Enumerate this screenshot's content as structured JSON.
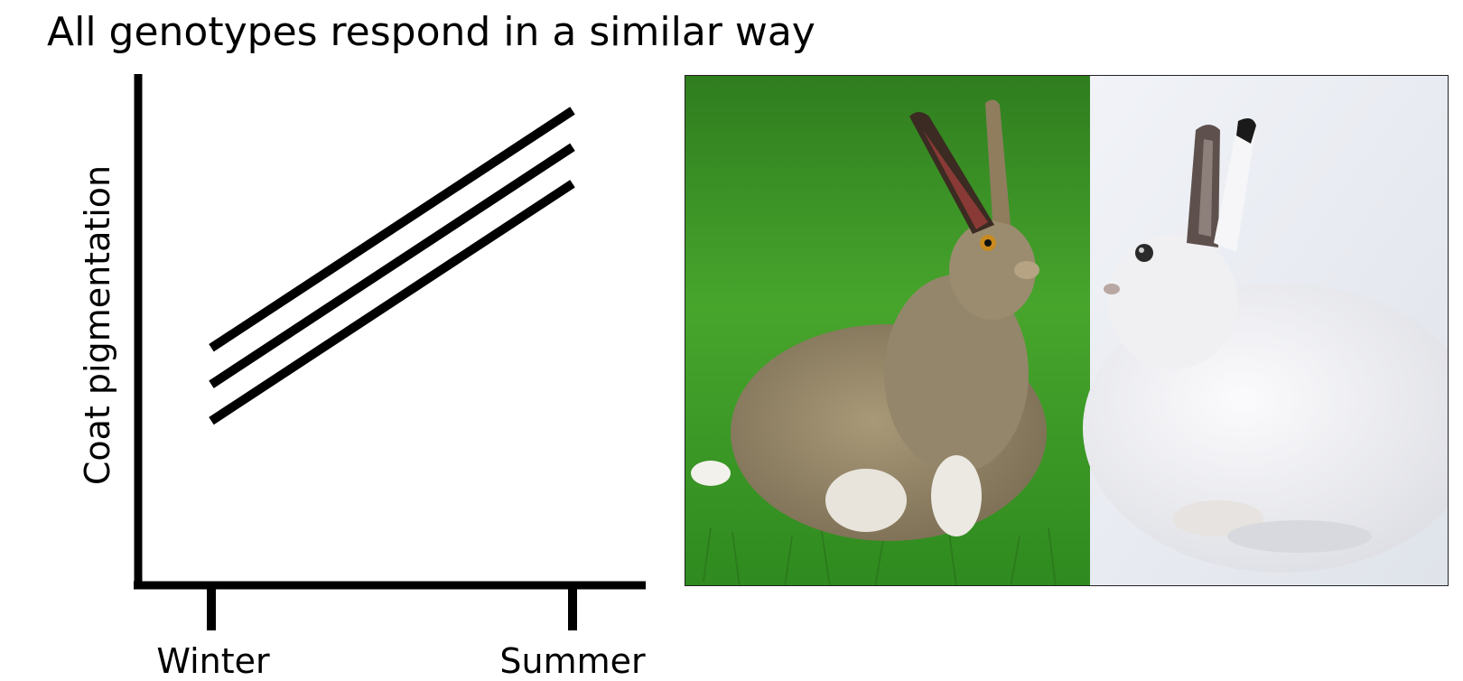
{
  "title": "All genotypes respond in a similar way",
  "chart_data": {
    "type": "line",
    "ylabel": "Coat pigmentation",
    "xlabel": "",
    "categories": [
      "Winter",
      "Summer"
    ],
    "series": [
      {
        "values": [
          3.5,
          10
        ]
      },
      {
        "values": [
          2.5,
          9
        ]
      },
      {
        "values": [
          1.5,
          8
        ]
      }
    ],
    "ylim": [
      -3,
      11
    ],
    "grid": false
  },
  "photo": {
    "left_icon": "hare-summer-brown-coat-on-grass",
    "right_icon": "hare-winter-white-coat-on-snow",
    "colors": {
      "grass": "#3f9a2a",
      "snow": "#e9ecf2",
      "brown_coat": "#9a8a6e",
      "white_coat": "#f1f1f4"
    }
  }
}
